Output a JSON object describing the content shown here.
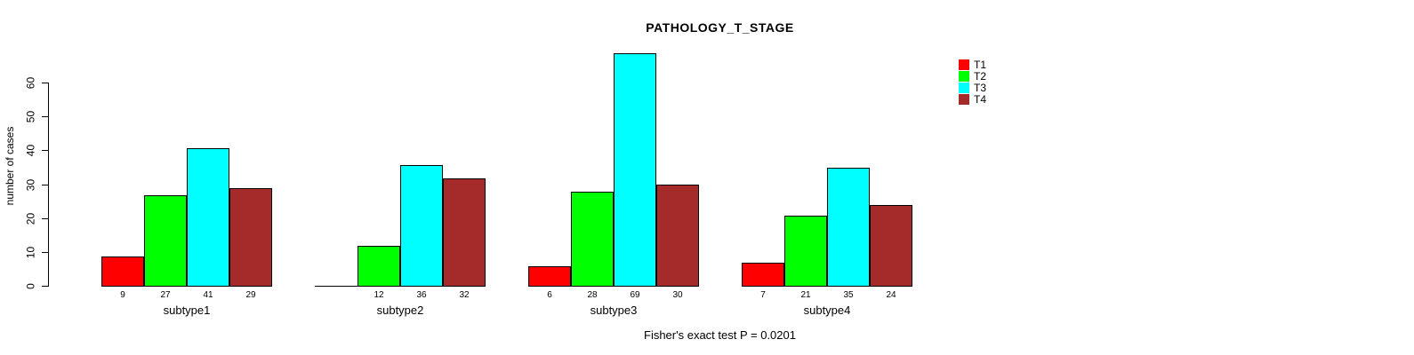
{
  "title": "PATHOLOGY_T_STAGE",
  "caption": "Fisher's exact test P = 0.0201",
  "chart_data": {
    "type": "bar",
    "title": "PATHOLOGY_T_STAGE",
    "ylabel": "number of cases",
    "xlabel": "",
    "yticks": [
      0,
      10,
      20,
      30,
      40,
      50,
      60
    ],
    "ylim": [
      0,
      69
    ],
    "grid": false,
    "categories": [
      "subtype1",
      "subtype2",
      "subtype3",
      "subtype4"
    ],
    "series": [
      {
        "name": "T1",
        "color": "#FF0000",
        "values": [
          9,
          0,
          6,
          7
        ]
      },
      {
        "name": "T2",
        "color": "#00FF00",
        "values": [
          27,
          12,
          28,
          21
        ]
      },
      {
        "name": "T3",
        "color": "#00FFFF",
        "values": [
          41,
          36,
          69,
          35
        ]
      },
      {
        "name": "T4",
        "color": "#A52A2A",
        "values": [
          29,
          32,
          30,
          24
        ]
      }
    ],
    "value_labels": {
      "subtype1": [
        9,
        27,
        41,
        29
      ],
      "subtype2": [
        "",
        12,
        36,
        32
      ],
      "subtype3": [
        6,
        28,
        69,
        30
      ],
      "subtype4": [
        7,
        21,
        35,
        24
      ]
    },
    "legend": {
      "position": "top-right",
      "entries": [
        {
          "label": "T1",
          "color": "#FF0000"
        },
        {
          "label": "T2",
          "color": "#00FF00"
        },
        {
          "label": "T3",
          "color": "#00FFFF"
        },
        {
          "label": "T4",
          "color": "#A52A2A"
        }
      ]
    },
    "annotation": "Fisher's exact test P = 0.0201"
  }
}
